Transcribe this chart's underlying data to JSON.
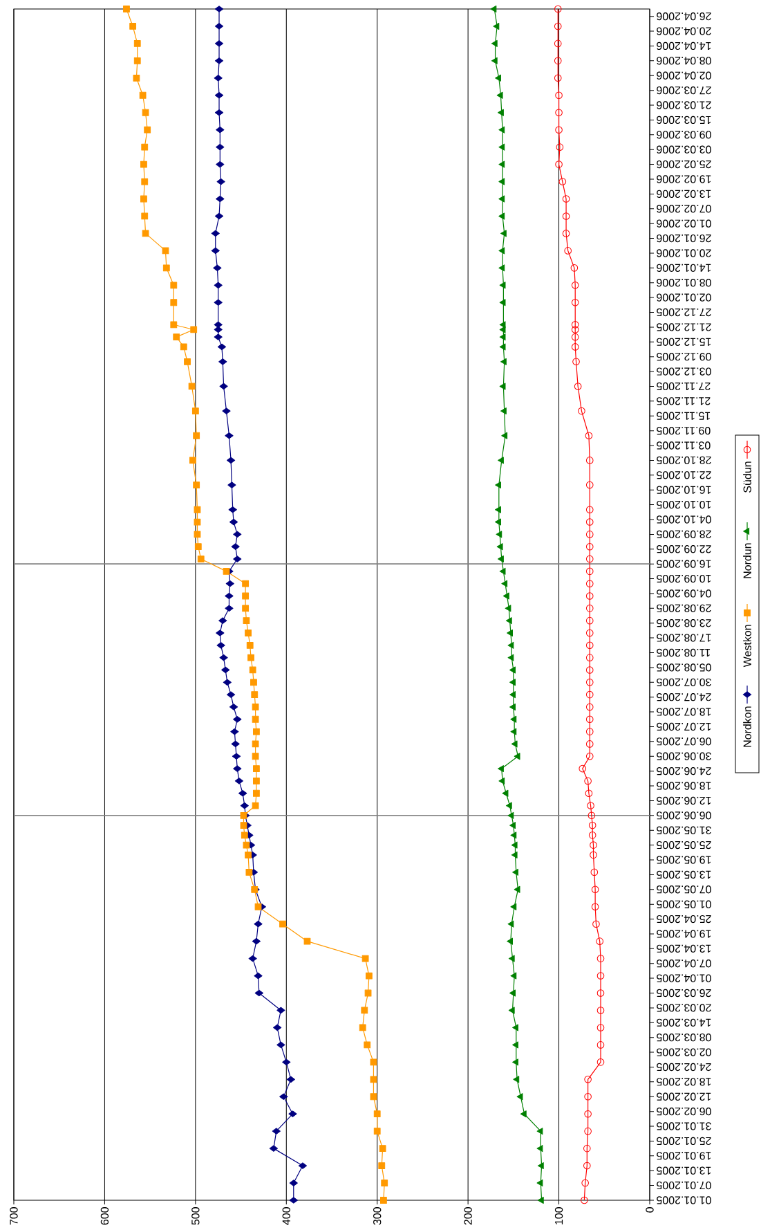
{
  "chart_data": {
    "type": "line",
    "x": [
      "2005-01-01",
      "2005-01-08",
      "2005-01-15",
      "2005-01-22",
      "2005-01-29",
      "2005-02-05",
      "2005-02-12",
      "2005-02-19",
      "2005-02-26",
      "2005-03-05",
      "2005-03-12",
      "2005-03-19",
      "2005-03-26",
      "2005-04-02",
      "2005-04-09",
      "2005-04-16",
      "2005-04-23",
      "2005-04-30",
      "2005-05-07",
      "2005-05-14",
      "2005-05-21",
      "2005-05-25",
      "2005-05-29",
      "2005-06-02",
      "2005-06-06",
      "2005-06-10",
      "2005-06-15",
      "2005-06-20",
      "2005-06-25",
      "2005-06-30",
      "2005-07-05",
      "2005-07-10",
      "2005-07-15",
      "2005-07-20",
      "2005-07-25",
      "2005-07-30",
      "2005-08-04",
      "2005-08-09",
      "2005-08-14",
      "2005-08-19",
      "2005-08-24",
      "2005-08-29",
      "2005-09-03",
      "2005-09-08",
      "2005-09-13",
      "2005-09-18",
      "2005-09-23",
      "2005-09-28",
      "2005-10-03",
      "2005-10-08",
      "2005-10-18",
      "2005-10-28",
      "2005-11-07",
      "2005-11-17",
      "2005-11-27",
      "2005-12-07",
      "2005-12-13",
      "2005-12-17",
      "2005-12-20",
      "2005-12-22",
      "2005-12-31",
      "2006-01-07",
      "2006-01-14",
      "2006-01-21",
      "2006-01-28",
      "2006-02-04",
      "2006-02-11",
      "2006-02-18",
      "2006-02-25",
      "2006-03-04",
      "2006-03-11",
      "2006-03-18",
      "2006-03-25",
      "2006-04-01",
      "2006-04-08",
      "2006-04-15",
      "2006-04-22",
      "2006-04-29"
    ],
    "series": [
      {
        "name": "Nordkon",
        "color": "#000080",
        "marker": "diamond",
        "values": [
          392,
          392,
          382,
          414,
          411,
          393,
          403,
          395,
          400,
          406,
          410,
          406,
          430,
          431,
          437,
          433,
          431,
          427,
          434,
          436,
          437,
          439,
          441,
          443,
          445,
          446,
          448,
          452,
          454,
          455,
          456,
          457,
          454,
          458,
          461,
          465,
          467,
          469,
          472,
          473,
          470,
          463,
          463,
          462,
          463,
          454,
          456,
          454,
          458,
          459,
          460,
          461,
          463,
          466,
          469,
          470,
          471,
          475,
          475,
          475,
          475,
          475,
          476,
          478,
          478,
          474,
          473,
          472,
          473,
          473,
          473,
          474,
          474,
          475,
          474,
          474,
          474,
          474
        ]
      },
      {
        "name": "Westkon",
        "color": "#ff9900",
        "marker": "square",
        "values": [
          293,
          292,
          295,
          294,
          300,
          300,
          304,
          304,
          304,
          311,
          316,
          314,
          310,
          309,
          313,
          377,
          404,
          431,
          435,
          441,
          442,
          444,
          446,
          447,
          447,
          434,
          433,
          433,
          433,
          434,
          434,
          433,
          434,
          434,
          435,
          436,
          437,
          439,
          440,
          442,
          444,
          445,
          445,
          445,
          466,
          494,
          497,
          498,
          498,
          498,
          499,
          503,
          499,
          500,
          504,
          509,
          513,
          521,
          502,
          524,
          524,
          524,
          532,
          533,
          555,
          556,
          557,
          556,
          557,
          556,
          553,
          555,
          558,
          565,
          564,
          564,
          569,
          576
        ]
      },
      {
        "name": "Nordun",
        "color": "#008000",
        "marker": "triangle",
        "values": [
          119,
          120,
          119,
          120,
          120,
          138,
          142,
          146,
          147,
          147,
          147,
          151,
          150,
          149,
          151,
          153,
          152,
          149,
          145,
          147,
          148,
          148,
          149,
          150,
          152,
          154,
          158,
          162,
          163,
          145,
          148,
          149,
          149,
          150,
          150,
          150,
          150,
          152,
          152,
          153,
          154,
          155,
          157,
          159,
          161,
          163,
          164,
          165,
          166,
          166,
          166,
          163,
          159,
          160,
          161,
          160,
          161,
          161,
          161,
          161,
          161,
          161,
          162,
          162,
          160,
          162,
          162,
          162,
          162,
          162,
          162,
          163,
          164,
          166,
          170,
          170,
          168,
          171
        ]
      },
      {
        "name": "Südun",
        "color": "#ff0000",
        "marker": "circle",
        "values": [
          72,
          71,
          69,
          69,
          68,
          68,
          68,
          68,
          54,
          54,
          54,
          54,
          54,
          54,
          54,
          55,
          59,
          60,
          60,
          61,
          62,
          62,
          63,
          63,
          64,
          65,
          67,
          68,
          74,
          66,
          66,
          66,
          66,
          66,
          66,
          66,
          66,
          66,
          66,
          66,
          66,
          66,
          66,
          66,
          66,
          66,
          66,
          66,
          66,
          66,
          66,
          66,
          67,
          75,
          79,
          81,
          82,
          82,
          82,
          82,
          82,
          82,
          83,
          90,
          92,
          92,
          92,
          96,
          100,
          99,
          100,
          100,
          100,
          101,
          101,
          101,
          101,
          101
        ]
      }
    ],
    "orientation": "horizontal",
    "ylim": [
      "2005-01-01",
      "2006-04-29"
    ],
    "yticks": [
      {
        "value": "2005-01-01",
        "label": "01.01.2005"
      },
      {
        "value": "2005-01-07",
        "label": "07.01.2005"
      },
      {
        "value": "2005-01-13",
        "label": "13.01.2005"
      },
      {
        "value": "2005-01-19",
        "label": "19.01.2005"
      },
      {
        "value": "2005-01-25",
        "label": "25.01.2005"
      },
      {
        "value": "2005-01-31",
        "label": "31.01.2005"
      },
      {
        "value": "2005-02-06",
        "label": "06.02.2005"
      },
      {
        "value": "2005-02-12",
        "label": "12.02.2005"
      },
      {
        "value": "2005-02-18",
        "label": "18.02.2005"
      },
      {
        "value": "2005-02-24",
        "label": "24.02.2005"
      },
      {
        "value": "2005-03-02",
        "label": "02.03.2005"
      },
      {
        "value": "2005-03-08",
        "label": "08.03.2005"
      },
      {
        "value": "2005-03-14",
        "label": "14.03.2005"
      },
      {
        "value": "2005-03-20",
        "label": "20.03.2005"
      },
      {
        "value": "2005-03-26",
        "label": "26.03.2005"
      },
      {
        "value": "2005-04-01",
        "label": "01.04.2005"
      },
      {
        "value": "2005-04-07",
        "label": "07.04.2005"
      },
      {
        "value": "2005-04-13",
        "label": "13.04.2005"
      },
      {
        "value": "2005-04-19",
        "label": "19.04.2005"
      },
      {
        "value": "2005-04-25",
        "label": "25.04.2005"
      },
      {
        "value": "2005-05-01",
        "label": "01.05.2005"
      },
      {
        "value": "2005-05-07",
        "label": "07.05.2005"
      },
      {
        "value": "2005-05-13",
        "label": "13.05.2005"
      },
      {
        "value": "2005-05-19",
        "label": "19.05.2005"
      },
      {
        "value": "2005-05-25",
        "label": "25.05.2005"
      },
      {
        "value": "2005-05-31",
        "label": "31.05.2005"
      },
      {
        "value": "2005-06-06",
        "label": "06.06.2005"
      },
      {
        "value": "2005-06-12",
        "label": "12.06.2005"
      },
      {
        "value": "2005-06-18",
        "label": "18.06.2005"
      },
      {
        "value": "2005-06-24",
        "label": "24.06.2005"
      },
      {
        "value": "2005-06-30",
        "label": "30.06.2005"
      },
      {
        "value": "2005-07-06",
        "label": "06.07.2005"
      },
      {
        "value": "2005-07-12",
        "label": "12.07.2005"
      },
      {
        "value": "2005-07-18",
        "label": "18.07.2005"
      },
      {
        "value": "2005-07-24",
        "label": "24.07.2005"
      },
      {
        "value": "2005-07-30",
        "label": "30.07.2005"
      },
      {
        "value": "2005-08-05",
        "label": "05.08.2005"
      },
      {
        "value": "2005-08-11",
        "label": "11.08.2005"
      },
      {
        "value": "2005-08-17",
        "label": "17.08.2005"
      },
      {
        "value": "2005-08-23",
        "label": "23.08.2005"
      },
      {
        "value": "2005-08-29",
        "label": "29.08.2005"
      },
      {
        "value": "2005-09-04",
        "label": "04.09.2005"
      },
      {
        "value": "2005-09-10",
        "label": "10.09.2005"
      },
      {
        "value": "2005-09-16",
        "label": "16.09.2005"
      },
      {
        "value": "2005-09-22",
        "label": "22.09.2005"
      },
      {
        "value": "2005-09-28",
        "label": "28.09.2005"
      },
      {
        "value": "2005-10-04",
        "label": "04.10.2005"
      },
      {
        "value": "2005-10-10",
        "label": "10.10.2005"
      },
      {
        "value": "2005-10-16",
        "label": "16.10.2005"
      },
      {
        "value": "2005-10-22",
        "label": "22.10.2005"
      },
      {
        "value": "2005-10-28",
        "label": "28.10.2005"
      },
      {
        "value": "2005-11-03",
        "label": "03.11.2005"
      },
      {
        "value": "2005-11-09",
        "label": "09.11.2005"
      },
      {
        "value": "2005-11-15",
        "label": "15.11.2005"
      },
      {
        "value": "2005-11-21",
        "label": "21.11.2005"
      },
      {
        "value": "2005-11-27",
        "label": "27.11.2005"
      },
      {
        "value": "2005-12-03",
        "label": "03.12.2005"
      },
      {
        "value": "2005-12-09",
        "label": "09.12.2005"
      },
      {
        "value": "2005-12-15",
        "label": "15.12.2005"
      },
      {
        "value": "2005-12-21",
        "label": "21.12.2005"
      },
      {
        "value": "2005-12-27",
        "label": "27.12.2005"
      },
      {
        "value": "2006-01-02",
        "label": "02.01.2006"
      },
      {
        "value": "2006-01-08",
        "label": "08.01.2006"
      },
      {
        "value": "2006-01-14",
        "label": "14.01.2006"
      },
      {
        "value": "2006-01-20",
        "label": "20.01.2006"
      },
      {
        "value": "2006-01-26",
        "label": "26.01.2006"
      },
      {
        "value": "2006-02-01",
        "label": "01.02.2006"
      },
      {
        "value": "2006-02-07",
        "label": "07.02.2006"
      },
      {
        "value": "2006-02-13",
        "label": "13.02.2006"
      },
      {
        "value": "2006-02-19",
        "label": "19.02.2006"
      },
      {
        "value": "2006-02-25",
        "label": "25.02.2006"
      },
      {
        "value": "2006-03-03",
        "label": "03.03.2006"
      },
      {
        "value": "2006-03-09",
        "label": "09.03.2006"
      },
      {
        "value": "2006-03-15",
        "label": "15.03.2006"
      },
      {
        "value": "2006-03-21",
        "label": "21.03.2006"
      },
      {
        "value": "2006-03-27",
        "label": "27.03.2006"
      },
      {
        "value": "2006-04-02",
        "label": "02.04.2006"
      },
      {
        "value": "2006-04-08",
        "label": "08.04.2006"
      },
      {
        "value": "2006-04-14",
        "label": "14.04.2006"
      },
      {
        "value": "2006-04-20",
        "label": "20.04.2006"
      },
      {
        "value": "2006-04-26",
        "label": "26.04.2006"
      }
    ],
    "xlim": [
      700,
      0
    ],
    "xticks": [
      0,
      100,
      200,
      300,
      400,
      500,
      600,
      700
    ],
    "grid": "x",
    "legend": "right",
    "ref_lines": [
      {
        "axis": "y",
        "value": "2005-06-06",
        "color": "#808080"
      },
      {
        "axis": "y",
        "value": "2005-09-16",
        "color": "#808080"
      }
    ]
  }
}
